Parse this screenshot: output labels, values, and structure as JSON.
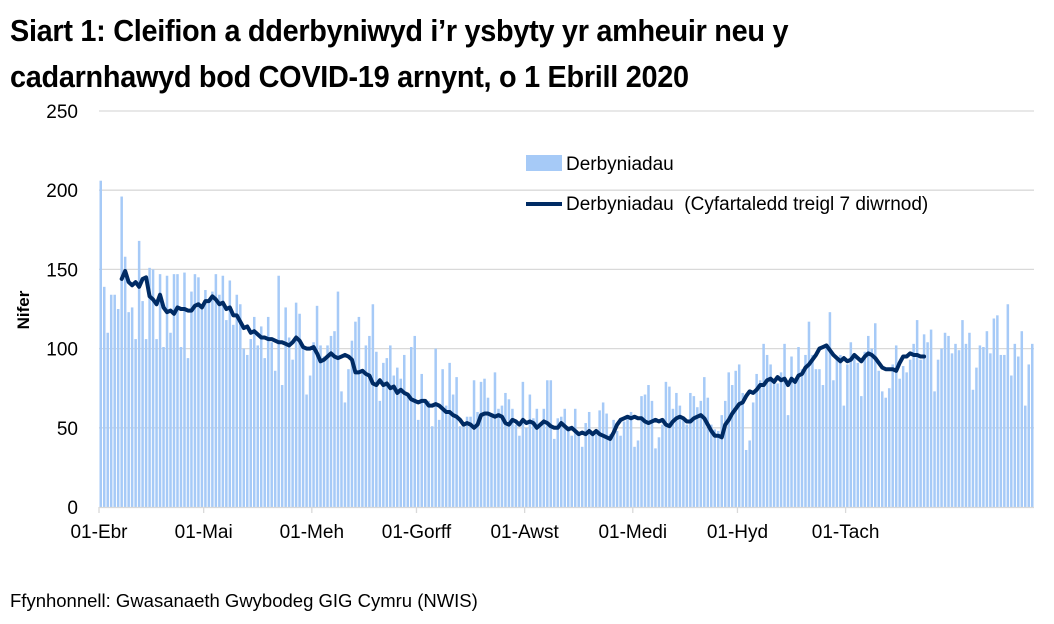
{
  "title_line1": "Siart 1: Cleifion a dderbyniwyd i’r ysbyty yr amheuir neu y",
  "title_line2": "cadarnhawyd bod COVID-19 arnynt, o 1 Ebrill 2020",
  "source": "Ffynhonnell: Gwasanaeth Gwybodeg GIG Cymru (NWIS)",
  "colors": {
    "bar": "#a6caf7",
    "line": "#002b64",
    "grid": "#d9d9d9"
  },
  "chart_data": {
    "type": "bar+line",
    "title": "Siart 1: Cleifion a dderbyniwyd i’r ysbyty yr amheuir neu y cadarnhawyd bod COVID-19 arnynt, o 1 Ebrill 2020",
    "xlabel": "",
    "ylabel": "Nifer",
    "ylim": [
      0,
      250
    ],
    "yticks": [
      0,
      50,
      100,
      150,
      200,
      250
    ],
    "grid": true,
    "legend_position": "top-right",
    "x_tick_labels": [
      "01-Ebr",
      "01-Mai",
      "01-Meh",
      "01-Gorff",
      "01-Awst",
      "01-Medi",
      "01-Hyd",
      "01-Tach"
    ],
    "x_tick_day_index": [
      0,
      30,
      61,
      91,
      122,
      153,
      183,
      214
    ],
    "series": [
      {
        "name": "Derbyniadau",
        "type": "bar",
        "values": [
          206,
          139,
          110,
          134,
          134,
          125,
          196,
          158,
          123,
          126,
          106,
          168,
          130,
          106,
          151,
          150,
          106,
          147,
          101,
          146,
          110,
          147,
          147,
          101,
          148,
          94,
          136,
          147,
          145,
          126,
          137,
          130,
          136,
          147,
          134,
          146,
          118,
          143,
          115,
          134,
          128,
          100,
          96,
          106,
          120,
          102,
          114,
          94,
          120,
          104,
          86,
          146,
          77,
          126,
          107,
          93,
          129,
          122,
          100,
          71,
          83,
          104,
          127,
          102,
          95,
          102,
          108,
          111,
          136,
          73,
          66,
          87,
          105,
          117,
          120,
          84,
          102,
          108,
          128,
          98,
          67,
          91,
          94,
          102,
          83,
          88,
          81,
          96,
          71,
          101,
          108,
          55,
          84,
          66,
          67,
          51,
          100,
          55,
          87,
          64,
          91,
          71,
          82,
          51,
          51,
          57,
          57,
          80,
          60,
          79,
          81,
          69,
          57,
          85,
          62,
          64,
          72,
          68,
          62,
          52,
          45,
          79,
          50,
          71,
          56,
          62,
          52,
          62,
          80,
          80,
          43,
          56,
          57,
          62,
          51,
          45,
          62,
          46,
          38,
          53,
          60,
          46,
          46,
          61,
          66,
          59,
          46,
          55,
          48,
          45,
          54,
          56,
          60,
          38,
          42,
          70,
          71,
          77,
          67,
          37,
          44,
          52,
          79,
          76,
          62,
          72,
          64,
          57,
          52,
          72,
          70,
          63,
          67,
          82,
          69,
          52,
          49,
          48,
          58,
          67,
          85,
          77,
          86,
          90,
          72,
          36,
          42,
          66,
          84,
          80,
          103,
          96,
          90,
          79,
          78,
          85,
          103,
          58,
          95,
          79,
          101,
          87,
          96,
          117,
          96,
          87,
          87,
          77,
          103,
          123,
          80,
          94,
          96,
          64,
          90,
          104,
          94,
          91,
          70,
          98,
          108,
          100,
          116,
          86,
          73,
          69,
          75,
          90,
          102,
          81,
          89,
          85,
          93,
          103,
          118,
          93,
          109,
          104,
          112,
          73,
          93,
          100,
          110,
          108,
          97,
          103,
          99,
          118,
          103,
          110,
          74,
          88,
          102,
          101,
          111,
          97,
          119,
          121,
          96,
          96,
          128,
          83,
          103,
          95,
          111,
          64,
          90,
          103
        ]
      },
      {
        "name": "Derbyniadau  (Cyfartaledd treigl 7 diwrnod)",
        "type": "line",
        "start_day_index": 6,
        "values": [
          144,
          149,
          142,
          140,
          142,
          139,
          144,
          145,
          133,
          131,
          128,
          134,
          126,
          123,
          124,
          122,
          126,
          125,
          125,
          124,
          124,
          127,
          128,
          126,
          130,
          130,
          133,
          131,
          128,
          129,
          125,
          126,
          121,
          121,
          117,
          113,
          114,
          110,
          111,
          109,
          107,
          107,
          106,
          106,
          105,
          104,
          104,
          103,
          102,
          104,
          107,
          105,
          101,
          100,
          100,
          101,
          97,
          92,
          93,
          95,
          97,
          95,
          94,
          95,
          96,
          95,
          93,
          85,
          85,
          86,
          84,
          83,
          78,
          77,
          80,
          77,
          78,
          75,
          76,
          72,
          74,
          72,
          71,
          68,
          67,
          66,
          67,
          67,
          64,
          64,
          65,
          64,
          62,
          60,
          60,
          58,
          57,
          55,
          52,
          53,
          52,
          50,
          52,
          58,
          59,
          59,
          58,
          57,
          58,
          57,
          53,
          52,
          55,
          54,
          52,
          55,
          53,
          54,
          53,
          50,
          52,
          54,
          53,
          51,
          50,
          50,
          53,
          51,
          49,
          50,
          48,
          46,
          47,
          46,
          48,
          46,
          48,
          46,
          45,
          44,
          43,
          47,
          52,
          55,
          56,
          57,
          56,
          57,
          56,
          56,
          54,
          53,
          54,
          55,
          54,
          55,
          52,
          51,
          54,
          56,
          57,
          56,
          54,
          54,
          56,
          57,
          58,
          56,
          52,
          48,
          45,
          45,
          44,
          52,
          55,
          59,
          62,
          65,
          66,
          70,
          73,
          72,
          74,
          77,
          77,
          80,
          81,
          79,
          82,
          80,
          81,
          77,
          81,
          79,
          83,
          84,
          88,
          90,
          93,
          96,
          100,
          101,
          102,
          99,
          96,
          94,
          92,
          94,
          92,
          93,
          96,
          94,
          92,
          95,
          97,
          96,
          94,
          91,
          88,
          87,
          87,
          87,
          86,
          91,
          95,
          95,
          97,
          96,
          96,
          95,
          95
        ]
      }
    ]
  },
  "legend": {
    "items": [
      {
        "label": "Derbyniadau",
        "kind": "bar"
      },
      {
        "label": "Derbyniadau  (Cyfartaledd treigl 7 diwrnod)",
        "kind": "line"
      }
    ]
  }
}
